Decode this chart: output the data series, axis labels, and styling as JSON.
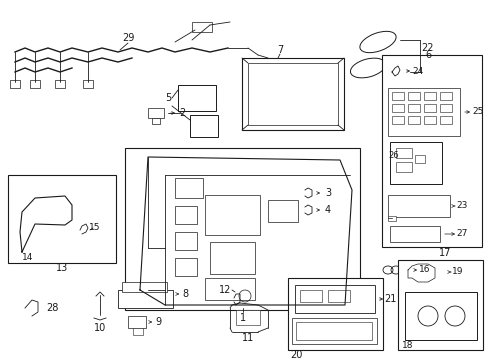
{
  "bg_color": "#ffffff",
  "lc": "#1a1a1a",
  "fig_w": 4.89,
  "fig_h": 3.6,
  "dpi": 100
}
